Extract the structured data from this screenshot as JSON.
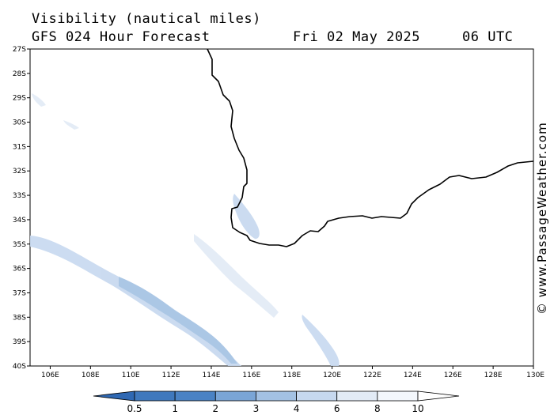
{
  "title": {
    "line1": "Visibility (nautical miles)",
    "line2": "GFS 024 Hour Forecast",
    "date": "Fri 02 May 2025",
    "time": "06 UTC"
  },
  "credit": "© www.PassageWeather.com",
  "axes": {
    "lat_labels": [
      "27S",
      "28S",
      "29S",
      "30S",
      "31S",
      "32S",
      "33S",
      "34S",
      "35S",
      "36S",
      "37S",
      "38S",
      "39S",
      "40S"
    ],
    "lon_labels": [
      "106E",
      "108E",
      "110E",
      "112E",
      "114E",
      "116E",
      "118E",
      "120E",
      "122E",
      "124E",
      "126E",
      "128E",
      "130E"
    ]
  },
  "colorbar": {
    "labels": [
      "0.5",
      "1",
      "2",
      "3",
      "4",
      "6",
      "8",
      "10"
    ],
    "colors": [
      "#3f78bd",
      "#4a82c4",
      "#7aa5d6",
      "#a3c1e3",
      "#c6d8ef",
      "#e2ebf6",
      "#f3f7fc"
    ]
  },
  "colors": {
    "coastline": "#000000",
    "low_visibility": "#c6d8ef",
    "very_low_visibility": "#a3c1e3"
  }
}
